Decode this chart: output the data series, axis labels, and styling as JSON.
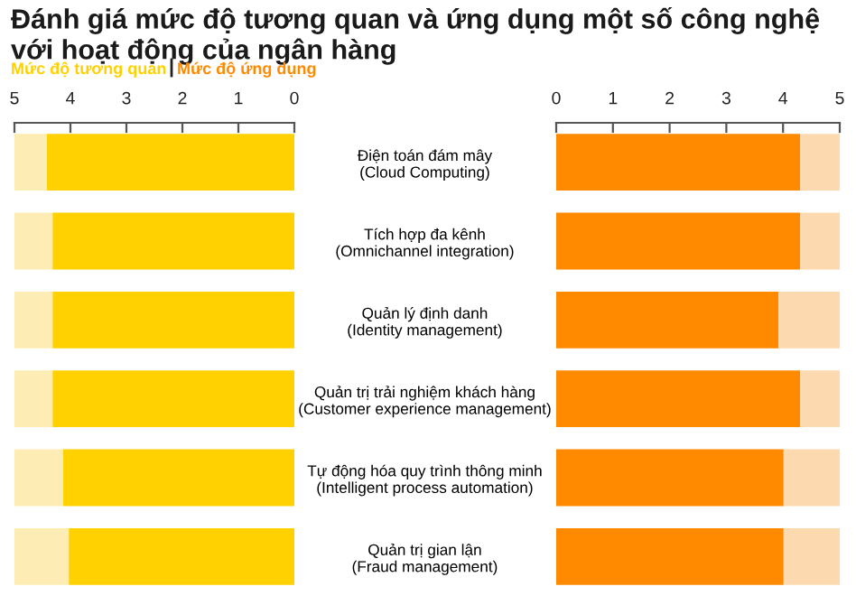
{
  "chart_data": [
    {
      "type": "bar",
      "orientation": "horizontal",
      "stacked": true,
      "title": "Đánh giá mức độ tương quan và ứng dụng một số công nghệ với hoạt động của ngân hàng",
      "categories": [
        "Điện toán đám mây\n(Cloud Computing)",
        "Tích hợp đa kênh\n(Omnichannel integration)",
        "Quản lý định danh\n(Identity management)",
        "Quản trị trải nghiệm khách hàng\n(Customer experience management)",
        "Tự động hóa quy trình thông minh\n(Intelligent process automation)",
        "Quản trị gian lận\n(Fraud management)"
      ],
      "series": [
        {
          "name": "Mức độ tương quan",
          "color": "#ffd100",
          "values": [
            4.42,
            4.32,
            4.32,
            4.32,
            4.13,
            4.03
          ]
        },
        {
          "color": "#fdedb5",
          "values": [
            0.58,
            0.68,
            0.68,
            0.68,
            0.87,
            0.97
          ]
        }
      ],
      "xlim": [
        5,
        0
      ],
      "xticks": [
        5,
        4,
        3,
        2,
        1,
        0
      ],
      "legend": "top left",
      "grid": false
    },
    {
      "type": "bar",
      "orientation": "horizontal",
      "stacked": true,
      "categories": [
        null,
        null,
        null,
        null,
        null,
        null
      ],
      "series": [
        {
          "name": "Mức độ ứng dụng",
          "color": "#ff8a00",
          "values": [
            4.3,
            4.3,
            3.92,
            4.3,
            4.01,
            4.01
          ]
        },
        {
          "color": "#fdd9b0",
          "values": [
            0.7,
            0.7,
            1.08,
            0.7,
            0.99,
            0.99
          ]
        }
      ],
      "xlim": [
        0,
        5
      ],
      "xticks": [
        0,
        1,
        2,
        3,
        4,
        5
      ],
      "tick_labels": "x",
      "legend": "top left",
      "grid": false
    }
  ]
}
